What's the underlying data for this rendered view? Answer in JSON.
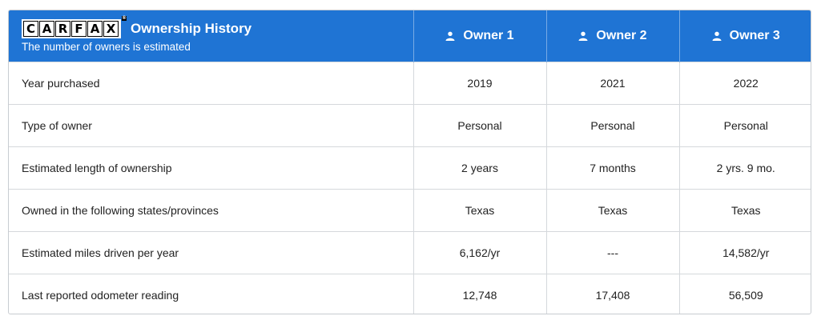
{
  "header": {
    "logo_letters": [
      "C",
      "A",
      "R",
      "F",
      "A",
      "X"
    ],
    "logo_reg": "®",
    "title": "Ownership History",
    "subtitle": "The number of owners is estimated",
    "owners": [
      "Owner 1",
      "Owner 2",
      "Owner 3"
    ],
    "owner_icon": "person-icon",
    "accent_color": "#1f74d4"
  },
  "rows": [
    {
      "label": "Year purchased",
      "values": [
        "2019",
        "2021",
        "2022"
      ]
    },
    {
      "label": "Type of owner",
      "values": [
        "Personal",
        "Personal",
        "Personal"
      ]
    },
    {
      "label": "Estimated length of ownership",
      "values": [
        "2 years",
        "7 months",
        "2 yrs. 9 mo."
      ]
    },
    {
      "label": "Owned in the following states/provinces",
      "values": [
        "Texas",
        "Texas",
        "Texas"
      ]
    },
    {
      "label": "Estimated miles driven per year",
      "values": [
        "6,162/yr",
        "---",
        "14,582/yr"
      ]
    },
    {
      "label": "Last reported odometer reading",
      "values": [
        "12,748",
        "17,408",
        "56,509"
      ]
    }
  ]
}
